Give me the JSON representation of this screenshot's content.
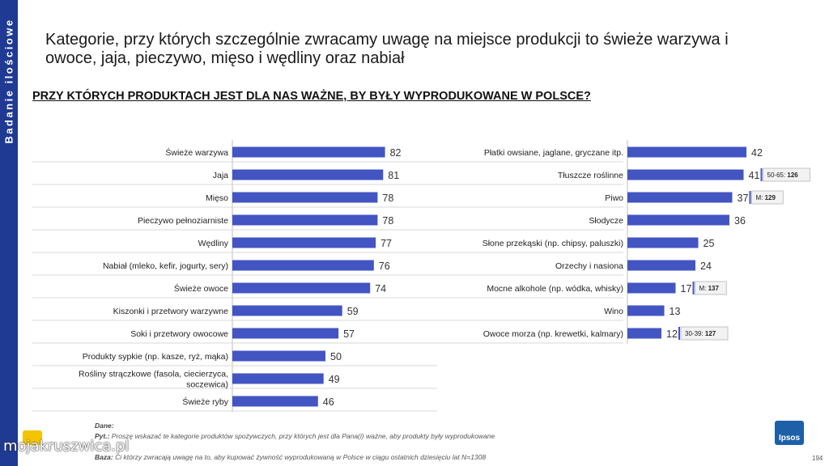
{
  "sidebar": {
    "label": "Badanie ilościowe"
  },
  "title": "Kategorie, przy których szczególnie zwracamy uwagę na miejsce produkcji to świeże warzywa i owoce, jaja, pieczywo, mięso i wędliny oraz nabiał",
  "subtitle": "PRZY KTÓRYCH PRODUKTACH JEST DLA NAS WAŻNE, BY BYŁY WYPRODUKOWANE W POLSCE?",
  "colors": {
    "bar": "#4355c3",
    "sidebar": "#1f3a93",
    "callout_border": "#b7b7b7"
  },
  "chart_data": [
    {
      "type": "bar",
      "orientation": "horizontal",
      "categories": [
        "Świeże warzywa",
        "Jaja",
        "Mięso",
        "Pieczywo pełnoziarniste",
        "Wędliny",
        "Nabiał (mleko, kefir, jogurty, sery)",
        "Świeże owoce",
        "Kiszonki i przetwory warzywne",
        "Soki i przetwory owocowe",
        "Produkty sypkie (np. kasze, ryż, mąka)",
        "Rośliny strączkowe (fasola, ciecierzyca, soczewica)",
        "Świeże ryby"
      ],
      "values": [
        82,
        81,
        78,
        78,
        77,
        76,
        74,
        59,
        57,
        50,
        49,
        46
      ],
      "xlim": [
        0,
        100
      ]
    },
    {
      "type": "bar",
      "orientation": "horizontal",
      "categories": [
        "Płatki owsiane, jaglane, gryczane itp.",
        "Tłuszcze roślinne",
        "Piwo",
        "Słodycze",
        "Słone przekąski (np. chipsy, paluszki)",
        "Orzechy i nasiona",
        "Mocne alkohole (np. wódka, whisky)",
        "Wino",
        "Owoce morza (np. krewetki, kalmary)"
      ],
      "values": [
        42,
        41,
        37,
        36,
        25,
        24,
        17,
        13,
        12
      ],
      "xlim": [
        0,
        100
      ],
      "annotations": [
        {
          "category": "Tłuszcze roślinne",
          "prefix": "50-65: ",
          "value": "126"
        },
        {
          "category": "Piwo",
          "prefix": "M: ",
          "value": "129"
        },
        {
          "category": "Mocne alkohole (np. wódka, whisky)",
          "prefix": "M: ",
          "value": "137"
        },
        {
          "category": "Owoce morza (np. krewetki, kalmary)",
          "prefix": "30-39: ",
          "value": "127"
        }
      ]
    }
  ],
  "footer": {
    "line1_label": "Dane:",
    "line2_label": "Pyt.:",
    "line2_text": "Proszę wskazać te kategorie produktów spożywczych, przy których jest dla Pana(i) ważne, aby produkty były wyprodukowane",
    "line3_label": "Baza:",
    "line3_text": "Ci którzy zwracają uwagę na to, aby kupować żywność wyprodukowaną w Polsce w ciągu ostatnich dziesięciu lat N=1308"
  },
  "logo": {
    "text": "Ipsos",
    "icon": "ipsos-logo"
  },
  "page_number": "194",
  "watermark": {
    "text": "mojakruszwica.pl",
    "icon": "ladybug-logo"
  }
}
